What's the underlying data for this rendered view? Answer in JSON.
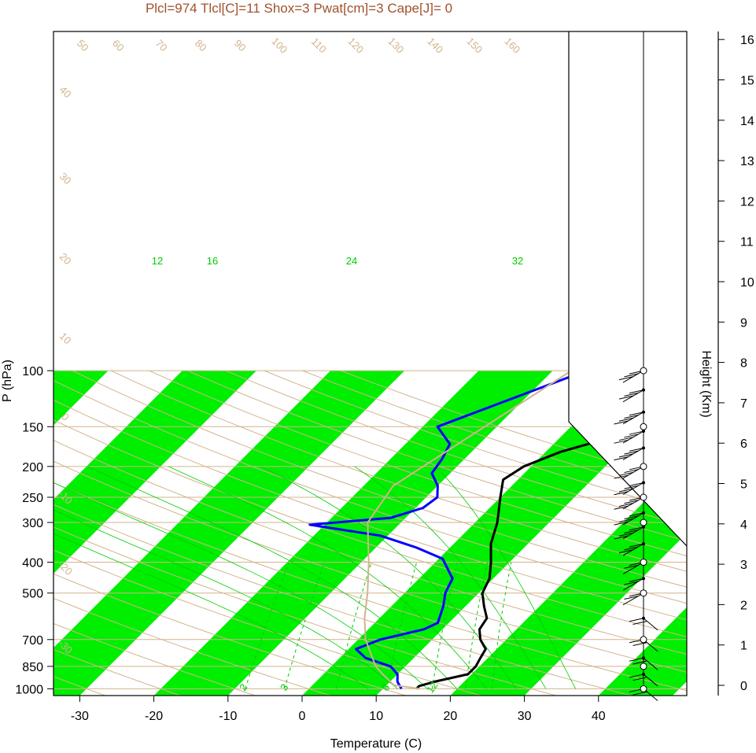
{
  "chart_data": {
    "type": "line",
    "title": "Plcl=974 Tlcl[C]=11 Shox=3 Pwat[cm]=3 Cape[J]= 0",
    "xlabel": "Temperature (C)",
    "ylabel": "P (hPa)",
    "y2label": "Height (Km)",
    "xlim": [
      -33,
      37
    ],
    "ylim": [
      1050,
      100
    ],
    "y_scale": "log",
    "x_ticks": [
      "-30",
      "-20",
      "-10",
      "0",
      "10",
      "20",
      "30",
      "40"
    ],
    "p_ticks": [
      "100",
      "150",
      "200",
      "250",
      "300",
      "400",
      "500",
      "700",
      "850",
      "1000"
    ],
    "height_ticks": [
      "0",
      "1",
      "2",
      "3",
      "4",
      "5",
      "6",
      "7",
      "8",
      "9",
      "10",
      "11",
      "12",
      "13",
      "14",
      "15",
      "16"
    ],
    "colors": {
      "band": "#00ee00",
      "isobar": "#d2b48c",
      "temperature": "#000000",
      "dewpoint": "#0000ff",
      "parcel": "#d2b48c",
      "mixing_ratio": "#00cc00",
      "title": "#a0522d"
    },
    "series": [
      {
        "role": "temperature",
        "points": [
          [
            100,
            23.5
          ],
          [
            120,
            17.5
          ],
          [
            150,
            10.5
          ],
          [
            180,
            2
          ],
          [
            200,
            -1
          ],
          [
            220,
            -2
          ],
          [
            250,
            0
          ],
          [
            300,
            3
          ],
          [
            350,
            5
          ],
          [
            400,
            7.5
          ],
          [
            450,
            9.5
          ],
          [
            500,
            10.5
          ],
          [
            550,
            12.5
          ],
          [
            600,
            14.5
          ],
          [
            650,
            15
          ],
          [
            700,
            16.5
          ],
          [
            750,
            18.5
          ],
          [
            800,
            19
          ],
          [
            850,
            19.5
          ],
          [
            900,
            19.5
          ],
          [
            950,
            16
          ],
          [
            980,
            14.5
          ],
          [
            1000,
            14.5
          ]
        ]
      },
      {
        "role": "dewpoint",
        "points": [
          [
            100,
            -5.5
          ],
          [
            150,
            -18
          ],
          [
            170,
            -14
          ],
          [
            190,
            -13
          ],
          [
            210,
            -12.5
          ],
          [
            230,
            -10
          ],
          [
            250,
            -8.5
          ],
          [
            270,
            -9
          ],
          [
            290,
            -12
          ],
          [
            305,
            -22
          ],
          [
            330,
            -11
          ],
          [
            360,
            -4.5
          ],
          [
            390,
            0.5
          ],
          [
            450,
            4.5
          ],
          [
            500,
            5.5
          ],
          [
            550,
            7
          ],
          [
            620,
            8.5
          ],
          [
            650,
            7.5
          ],
          [
            700,
            3
          ],
          [
            750,
            1
          ],
          [
            800,
            3.5
          ],
          [
            850,
            8
          ],
          [
            900,
            10
          ],
          [
            950,
            11
          ],
          [
            1000,
            12.5
          ]
        ]
      },
      {
        "role": "parcel",
        "points": [
          [
            1000,
            15
          ],
          [
            974,
            11
          ],
          [
            900,
            8
          ],
          [
            850,
            6
          ],
          [
            700,
            1
          ],
          [
            600,
            -2
          ],
          [
            500,
            -5
          ],
          [
            400,
            -9
          ],
          [
            300,
            -14.5
          ],
          [
            230,
            -16
          ],
          [
            100,
            -7.5
          ]
        ]
      }
    ],
    "dry_adiabat_labels": [
      "50",
      "60",
      "70",
      "80",
      "90",
      "100",
      "110",
      "120",
      "130",
      "140",
      "150",
      "160",
      "40",
      "30",
      "20",
      "10",
      "0",
      "-10",
      "-20",
      "-30"
    ],
    "moist_adiabat_labels": [
      "30",
      "20",
      "10",
      "0"
    ],
    "lower_moist_adiabat_labels": [
      "10",
      "20",
      "30"
    ],
    "mixing_ratio_labels": [
      "2",
      "3",
      "8",
      "12"
    ],
    "temp_band_labels": [
      "12",
      "16",
      "24",
      "32"
    ],
    "wind_profile": "barbs",
    "wind_barbs": [
      {
        "p": 100,
        "dir": 270,
        "spd": 25
      },
      {
        "p": 115,
        "dir": 275,
        "spd": 30
      },
      {
        "p": 135,
        "dir": 280,
        "spd": 35
      },
      {
        "p": 155,
        "dir": 285,
        "spd": 40
      },
      {
        "p": 175,
        "dir": 290,
        "spd": 45
      },
      {
        "p": 200,
        "dir": 295,
        "spd": 50
      },
      {
        "p": 225,
        "dir": 300,
        "spd": 50
      },
      {
        "p": 250,
        "dir": 305,
        "spd": 45
      },
      {
        "p": 280,
        "dir": 310,
        "spd": 40
      },
      {
        "p": 310,
        "dir": 315,
        "spd": 35
      },
      {
        "p": 350,
        "dir": 310,
        "spd": 30
      },
      {
        "p": 400,
        "dir": 300,
        "spd": 20
      },
      {
        "p": 450,
        "dir": 290,
        "spd": 15
      },
      {
        "p": 500,
        "dir": 280,
        "spd": 15
      },
      {
        "p": 600,
        "dir": 250,
        "spd": 15
      },
      {
        "p": 700,
        "dir": 220,
        "spd": 15
      },
      {
        "p": 800,
        "dir": 200,
        "spd": 20
      },
      {
        "p": 900,
        "dir": 190,
        "spd": 20
      },
      {
        "p": 1000,
        "dir": 180,
        "spd": 15
      }
    ]
  }
}
